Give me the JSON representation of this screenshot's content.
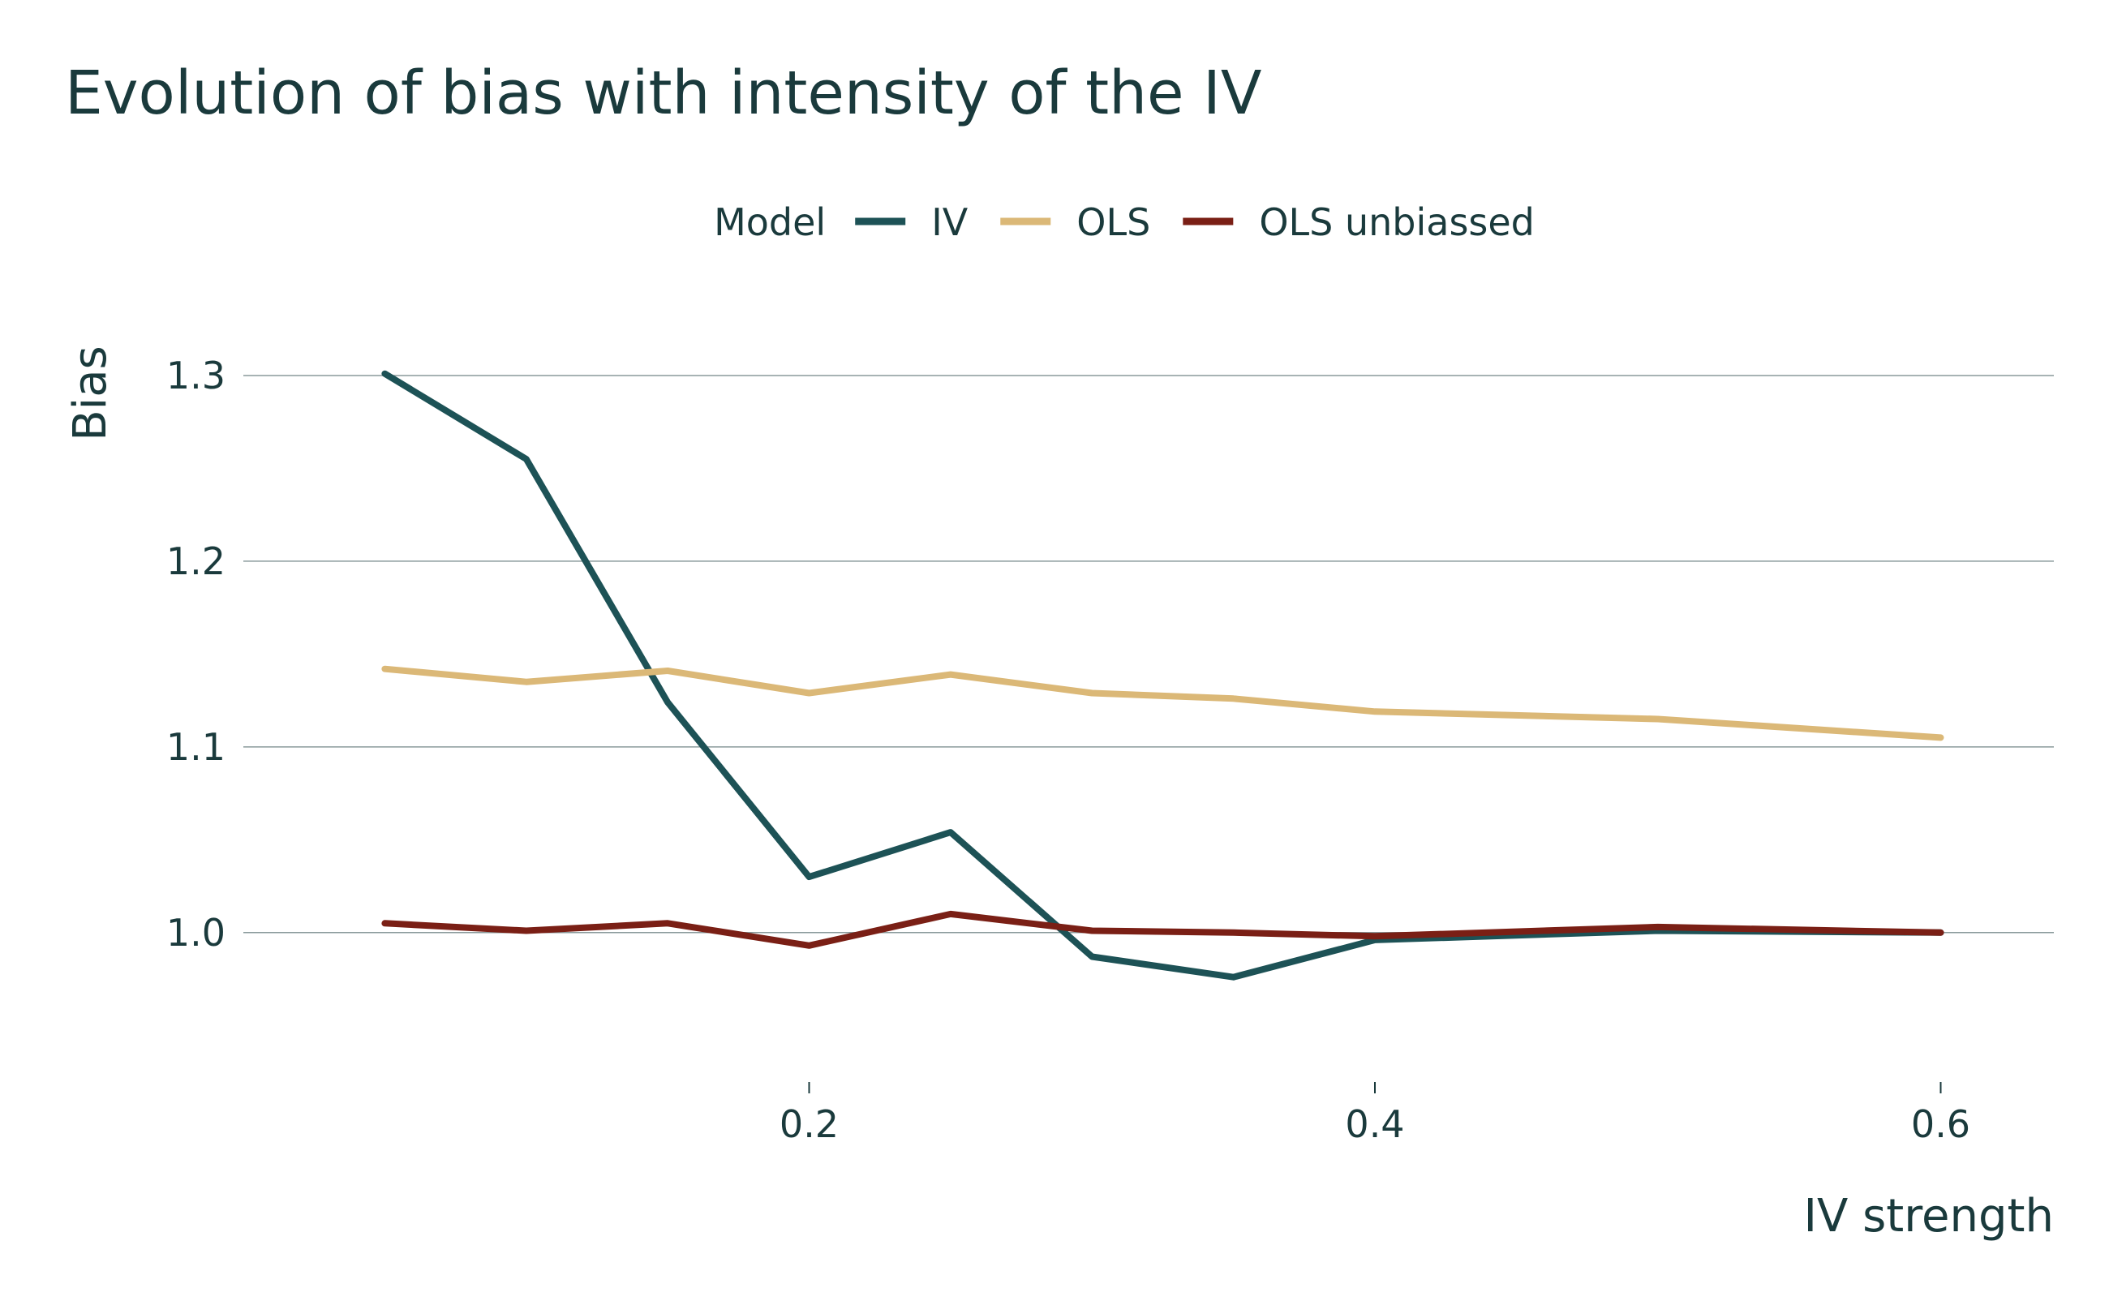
{
  "chart_data": {
    "type": "line",
    "title": "Evolution of bias with intensity of the IV",
    "xlabel": "IV strength",
    "ylabel": "Bias",
    "legend_title": "Model",
    "legend_position": "top",
    "grid": "horizontal-major",
    "xlim": [
      0.0,
      0.64
    ],
    "ylim": [
      0.93,
      1.345
    ],
    "x_ticks": [
      0.2,
      0.4,
      0.6
    ],
    "x_tick_labels": [
      "0.2",
      "0.4",
      "0.6"
    ],
    "y_ticks": [
      1.0,
      1.1,
      1.2,
      1.3
    ],
    "y_tick_labels": [
      "1.0",
      "1.1",
      "1.2",
      "1.3"
    ],
    "x": [
      0.05,
      0.1,
      0.15,
      0.2,
      0.25,
      0.3,
      0.35,
      0.4,
      0.5,
      0.6
    ],
    "series": [
      {
        "name": "IV",
        "color": "#1d5256",
        "values": [
          1.301,
          1.255,
          1.124,
          1.03,
          1.054,
          0.987,
          0.976,
          0.996,
          1.001,
          1.0
        ]
      },
      {
        "name": "OLS",
        "color": "#dbb877",
        "values": [
          1.142,
          1.135,
          1.141,
          1.129,
          1.139,
          1.129,
          1.126,
          1.119,
          1.115,
          1.105
        ]
      },
      {
        "name": "OLS unbiassed",
        "color": "#7a1f15",
        "values": [
          1.005,
          1.001,
          1.005,
          0.993,
          1.01,
          1.001,
          1.0,
          0.998,
          1.003,
          1.0
        ]
      }
    ]
  }
}
